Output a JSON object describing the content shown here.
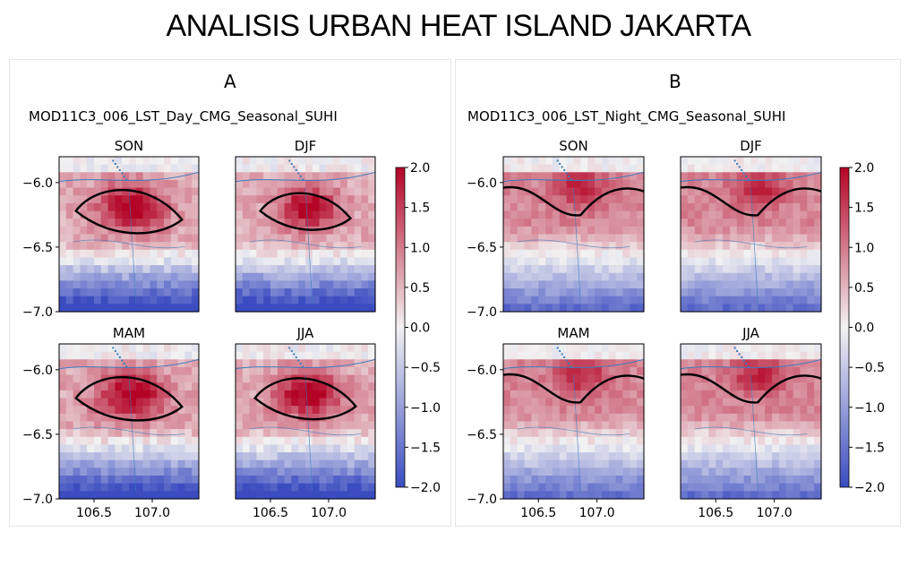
{
  "title": "ANALISIS URBAN HEAT  ISLAND JAKARTA",
  "palette": {
    "cold": "#3b4cc0",
    "neutral": "#f2f2f2",
    "warm": "#b40426",
    "contour": "#000000",
    "coastline": "#3a7bbd"
  },
  "chart_data": [
    {
      "type": "heatmap",
      "panel_letter": "A",
      "product": "MOD11C3_006_LST_Day_CMG_Seasonal_SUHI",
      "colorbar": {
        "ticks": [
          "2.0",
          "1.5",
          "1.0",
          "0.5",
          "0.0",
          "−0.5",
          "−1.0",
          "−1.5",
          "−2.0"
        ],
        "range": [
          -2.0,
          2.0
        ]
      },
      "x_ticks": [
        "106.5",
        "107.0"
      ],
      "y_ticks": [
        "−6.0",
        "−6.5",
        "−7.0"
      ],
      "xlim": [
        106.2,
        107.4
      ],
      "ylim": [
        -7.0,
        -5.8
      ],
      "subplots": [
        {
          "season": "SON",
          "regime": "day",
          "peak": 2.0,
          "spread": 1.0
        },
        {
          "season": "DJF",
          "regime": "day",
          "peak": 2.0,
          "spread": 0.85
        },
        {
          "season": "MAM",
          "regime": "day",
          "peak": 2.0,
          "spread": 1.0
        },
        {
          "season": "JJA",
          "regime": "day",
          "peak": 2.0,
          "spread": 0.95
        }
      ]
    },
    {
      "type": "heatmap",
      "panel_letter": "B",
      "product": "MOD11C3_006_LST_Night_CMG_Seasonal_SUHI",
      "colorbar": {
        "ticks": [
          "2.0",
          "1.5",
          "1.0",
          "0.5",
          "0.0",
          "−0.5",
          "−1.0",
          "−1.5",
          "−2.0"
        ],
        "range": [
          -2.0,
          2.0
        ]
      },
      "x_ticks": [
        "106.5",
        "107.0"
      ],
      "y_ticks": [
        "−6.0",
        "−6.5",
        "−7.0"
      ],
      "xlim": [
        106.2,
        107.4
      ],
      "ylim": [
        -7.0,
        -5.8
      ],
      "subplots": [
        {
          "season": "SON",
          "regime": "night",
          "peak": 1.8,
          "spread": 1.0
        },
        {
          "season": "DJF",
          "regime": "night",
          "peak": 1.8,
          "spread": 1.05
        },
        {
          "season": "MAM",
          "regime": "night",
          "peak": 1.7,
          "spread": 0.95
        },
        {
          "season": "JJA",
          "regime": "night",
          "peak": 1.9,
          "spread": 1.0
        }
      ]
    }
  ]
}
